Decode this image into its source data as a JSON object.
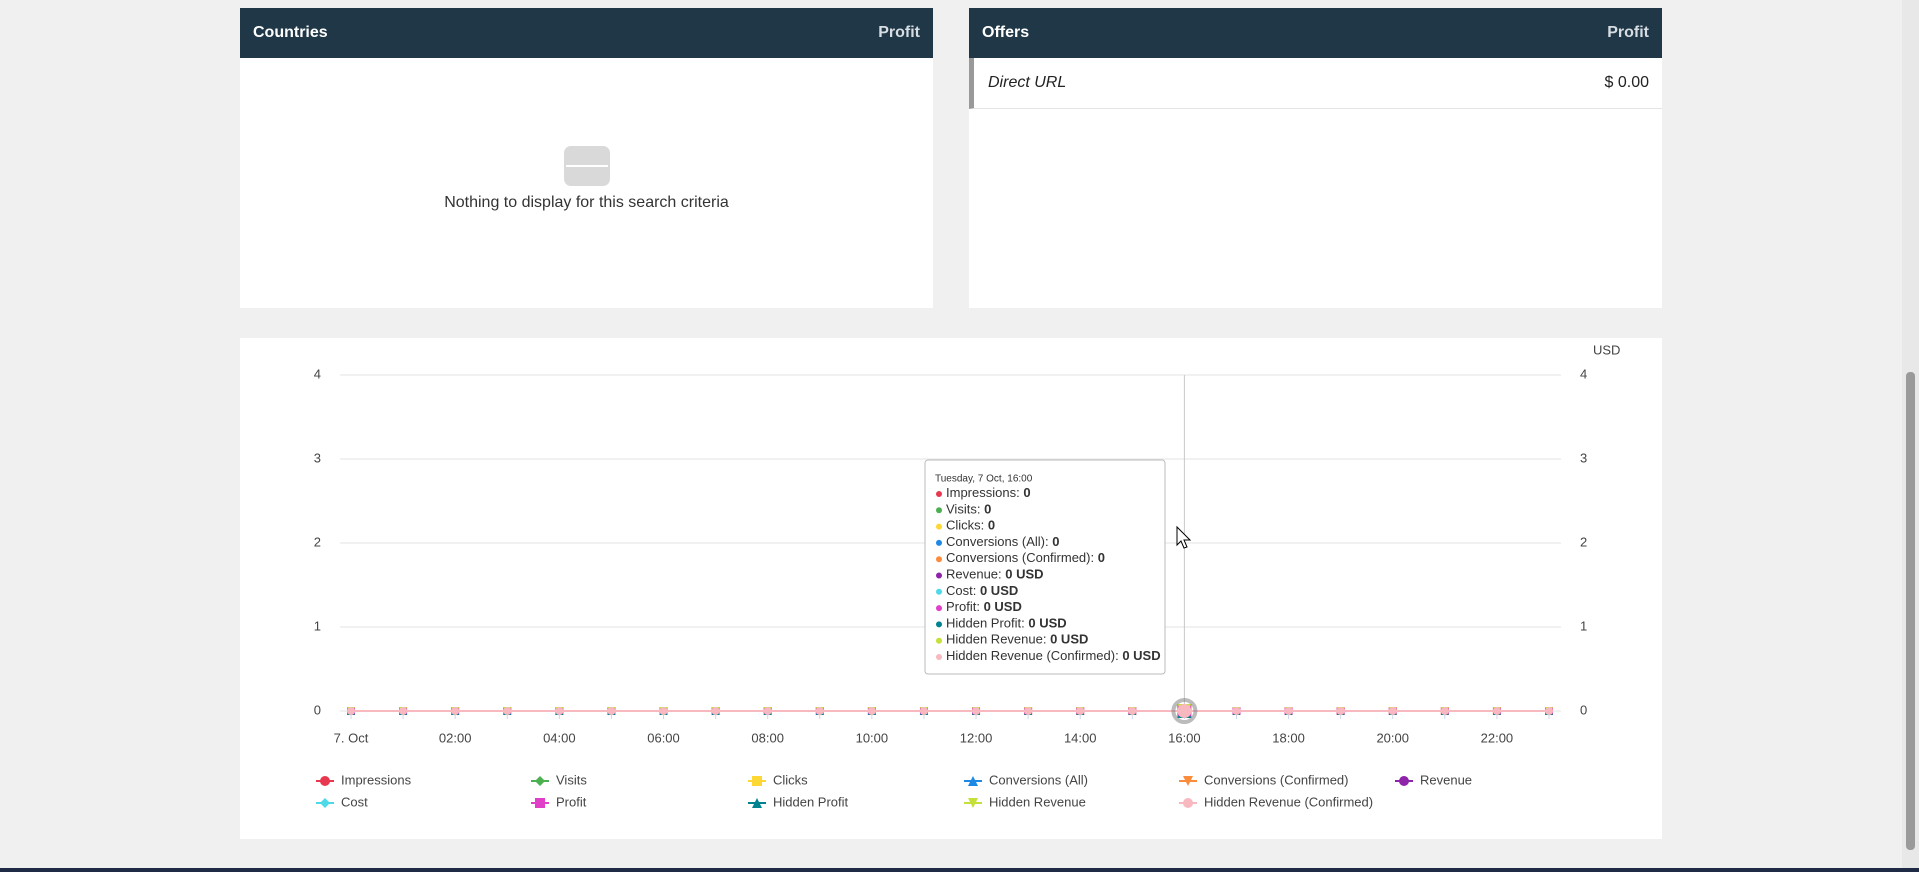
{
  "countries": {
    "title": "Countries",
    "metric": "Profit",
    "empty": "Nothing to display for this search criteria"
  },
  "offers": {
    "title": "Offers",
    "metric": "Profit",
    "rows": [
      [
        "Direct URL",
        "$ 0.00"
      ]
    ]
  },
  "chart_data": {
    "type": "line",
    "categories": [
      "7. Oct",
      null,
      "02:00",
      null,
      "04:00",
      null,
      "06:00",
      null,
      "08:00",
      null,
      "10:00",
      null,
      "12:00",
      null,
      "14:00",
      null,
      "16:00",
      null,
      "18:00",
      null,
      "20:00",
      null,
      "22:00",
      null
    ],
    "ylim": [
      0,
      4
    ],
    "yticks": [
      0,
      1,
      2,
      3,
      4
    ],
    "y2_label": "USD",
    "y2lim": [
      0,
      4
    ],
    "y2ticks": [
      0,
      1,
      2,
      3,
      4
    ],
    "grid": true,
    "series": [
      {
        "name": "Impressions",
        "color": "#e8384f",
        "marker": "circle",
        "values": [
          0,
          0,
          0,
          0,
          0,
          0,
          0,
          0,
          0,
          0,
          0,
          0,
          0,
          0,
          0,
          0,
          0,
          0,
          0,
          0,
          0,
          0,
          0,
          0
        ]
      },
      {
        "name": "Visits",
        "color": "#4caf50",
        "marker": "diamond",
        "values": [
          0,
          0,
          0,
          0,
          0,
          0,
          0,
          0,
          0,
          0,
          0,
          0,
          0,
          0,
          0,
          0,
          0,
          0,
          0,
          0,
          0,
          0,
          0,
          0
        ]
      },
      {
        "name": "Clicks",
        "color": "#fdd835",
        "marker": "square",
        "values": [
          0,
          0,
          0,
          0,
          0,
          0,
          0,
          0,
          0,
          0,
          0,
          0,
          0,
          0,
          0,
          0,
          0,
          0,
          0,
          0,
          0,
          0,
          0,
          0
        ]
      },
      {
        "name": "Conversions (All)",
        "color": "#1e88e5",
        "marker": "triangle",
        "values": [
          0,
          0,
          0,
          0,
          0,
          0,
          0,
          0,
          0,
          0,
          0,
          0,
          0,
          0,
          0,
          0,
          0,
          0,
          0,
          0,
          0,
          0,
          0,
          0
        ]
      },
      {
        "name": "Conversions (Confirmed)",
        "color": "#fb8c3c",
        "marker": "triangle-down",
        "values": [
          0,
          0,
          0,
          0,
          0,
          0,
          0,
          0,
          0,
          0,
          0,
          0,
          0,
          0,
          0,
          0,
          0,
          0,
          0,
          0,
          0,
          0,
          0,
          0
        ]
      },
      {
        "name": "Revenue",
        "color": "#8e24aa",
        "marker": "circle",
        "axis": "y2",
        "values": [
          0,
          0,
          0,
          0,
          0,
          0,
          0,
          0,
          0,
          0,
          0,
          0,
          0,
          0,
          0,
          0,
          0,
          0,
          0,
          0,
          0,
          0,
          0,
          0
        ]
      },
      {
        "name": "Cost",
        "color": "#4dd9e6",
        "marker": "diamond",
        "axis": "y2",
        "values": [
          0,
          0,
          0,
          0,
          0,
          0,
          0,
          0,
          0,
          0,
          0,
          0,
          0,
          0,
          0,
          0,
          0,
          0,
          0,
          0,
          0,
          0,
          0,
          0
        ]
      },
      {
        "name": "Profit",
        "color": "#e040c8",
        "marker": "square",
        "axis": "y2",
        "values": [
          0,
          0,
          0,
          0,
          0,
          0,
          0,
          0,
          0,
          0,
          0,
          0,
          0,
          0,
          0,
          0,
          0,
          0,
          0,
          0,
          0,
          0,
          0,
          0
        ]
      },
      {
        "name": "Hidden Profit",
        "color": "#00838f",
        "marker": "triangle",
        "axis": "y2",
        "values": [
          0,
          0,
          0,
          0,
          0,
          0,
          0,
          0,
          0,
          0,
          0,
          0,
          0,
          0,
          0,
          0,
          0,
          0,
          0,
          0,
          0,
          0,
          0,
          0
        ]
      },
      {
        "name": "Hidden Revenue",
        "color": "#c6e03a",
        "marker": "triangle-down",
        "axis": "y2",
        "values": [
          0,
          0,
          0,
          0,
          0,
          0,
          0,
          0,
          0,
          0,
          0,
          0,
          0,
          0,
          0,
          0,
          0,
          0,
          0,
          0,
          0,
          0,
          0,
          0
        ]
      },
      {
        "name": "Hidden Revenue (Confirmed)",
        "color": "#f8b8c0",
        "marker": "circle",
        "axis": "y2",
        "values": [
          0,
          0,
          0,
          0,
          0,
          0,
          0,
          0,
          0,
          0,
          0,
          0,
          0,
          0,
          0,
          0,
          0,
          0,
          0,
          0,
          0,
          0,
          0,
          0
        ]
      }
    ],
    "tooltip": {
      "title": "Tuesday, 7 Oct, 16:00",
      "hover_index": 16,
      "labels": [
        "0",
        "0",
        "0",
        "0",
        "0",
        "0 USD",
        "0 USD",
        "0 USD",
        "0 USD",
        "0 USD",
        "0 USD"
      ]
    }
  }
}
